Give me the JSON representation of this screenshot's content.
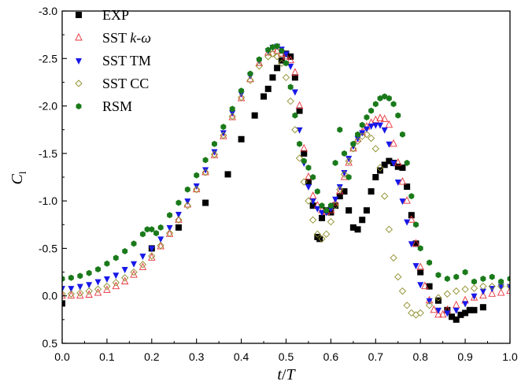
{
  "chart_data": {
    "type": "scatter",
    "xlabel_main": "t",
    "xlabel_sep": "/",
    "xlabel_sub": "T",
    "ylabel_main": "C",
    "ylabel_sub": "l",
    "xlim": [
      0.0,
      1.0
    ],
    "ylim": [
      0.5,
      -3.0
    ],
    "y_inverted": true,
    "x_ticks": [
      "0.0",
      "0.1",
      "0.2",
      "0.3",
      "0.4",
      "0.5",
      "0.6",
      "0.7",
      "0.8",
      "0.9",
      "1.0"
    ],
    "x_tick_values": [
      0,
      0.1,
      0.2,
      0.3,
      0.4,
      0.5,
      0.6,
      0.7,
      0.8,
      0.9,
      1.0
    ],
    "y_ticks": [
      "-3.0",
      "-2.5",
      "-2.0",
      "-1.5",
      "-1.0",
      "-0.5",
      "0.0",
      "0.5"
    ],
    "y_tick_values": [
      -3.0,
      -2.5,
      -2.0,
      -1.5,
      -1.0,
      -0.5,
      0.0,
      0.5
    ],
    "legend_position": "top-right-inside",
    "grid": false,
    "series": [
      {
        "name": "EXP",
        "legend_parts": [
          "EXP"
        ],
        "marker": "square",
        "color": "#000000",
        "x": [
          0.0,
          0.2,
          0.26,
          0.32,
          0.37,
          0.4,
          0.43,
          0.45,
          0.46,
          0.47,
          0.48,
          0.49,
          0.5,
          0.51,
          0.52,
          0.53,
          0.54,
          0.55,
          0.56,
          0.57,
          0.575,
          0.58,
          0.59,
          0.6,
          0.61,
          0.62,
          0.63,
          0.64,
          0.65,
          0.66,
          0.67,
          0.68,
          0.69,
          0.7,
          0.71,
          0.72,
          0.73,
          0.74,
          0.75,
          0.76,
          0.77,
          0.78,
          0.79,
          0.8,
          0.82,
          0.84,
          0.86,
          0.87,
          0.88,
          0.89,
          0.9,
          0.91,
          0.92,
          0.94
        ],
        "y": [
          0.08,
          -0.5,
          -0.72,
          -0.98,
          -1.28,
          -1.65,
          -1.9,
          -2.1,
          -2.18,
          -2.3,
          -2.4,
          -2.48,
          -2.55,
          -2.52,
          -2.3,
          -1.95,
          -1.5,
          -1.2,
          -0.95,
          -0.62,
          -0.6,
          -0.82,
          -0.9,
          -0.88,
          -0.95,
          -1.05,
          -1.1,
          -0.9,
          -0.72,
          -0.7,
          -0.8,
          -0.9,
          -1.1,
          -1.25,
          -1.32,
          -1.38,
          -1.42,
          -1.4,
          -1.36,
          -1.35,
          -1.15,
          -0.85,
          -0.55,
          -0.25,
          -0.1,
          0.05,
          0.15,
          0.22,
          0.25,
          0.2,
          0.18,
          0.15,
          0.15,
          0.12
        ]
      },
      {
        "name": "SST k-ω",
        "legend_parts": [
          "SST ",
          "k",
          "-",
          "ω"
        ],
        "marker": "triangle-up-open",
        "color": "#e8343c",
        "x": [
          0.0,
          0.02,
          0.04,
          0.06,
          0.08,
          0.1,
          0.12,
          0.14,
          0.16,
          0.18,
          0.2,
          0.22,
          0.24,
          0.26,
          0.28,
          0.3,
          0.32,
          0.34,
          0.36,
          0.38,
          0.4,
          0.42,
          0.44,
          0.46,
          0.47,
          0.48,
          0.49,
          0.5,
          0.51,
          0.52,
          0.53,
          0.54,
          0.55,
          0.56,
          0.57,
          0.58,
          0.59,
          0.6,
          0.61,
          0.62,
          0.63,
          0.64,
          0.65,
          0.66,
          0.67,
          0.68,
          0.69,
          0.7,
          0.71,
          0.72,
          0.73,
          0.74,
          0.75,
          0.76,
          0.77,
          0.78,
          0.79,
          0.8,
          0.81,
          0.82,
          0.83,
          0.84,
          0.85,
          0.86,
          0.88,
          0.9,
          0.92,
          0.94,
          0.96,
          0.98,
          1.0
        ],
        "y": [
          0.0,
          0.0,
          0.0,
          -0.01,
          -0.03,
          -0.06,
          -0.1,
          -0.15,
          -0.22,
          -0.3,
          -0.4,
          -0.52,
          -0.65,
          -0.8,
          -0.96,
          -1.12,
          -1.3,
          -1.48,
          -1.68,
          -1.88,
          -2.08,
          -2.28,
          -2.45,
          -2.56,
          -2.6,
          -2.58,
          -2.55,
          -2.52,
          -2.48,
          -2.35,
          -2.0,
          -1.55,
          -1.25,
          -1.05,
          -0.95,
          -0.9,
          -0.88,
          -0.9,
          -0.98,
          -1.1,
          -1.25,
          -1.4,
          -1.55,
          -1.65,
          -1.72,
          -1.78,
          -1.82,
          -1.85,
          -1.87,
          -1.86,
          -1.8,
          -1.6,
          -1.4,
          -1.2,
          -1.0,
          -0.8,
          -0.55,
          -0.3,
          -0.1,
          0.05,
          0.15,
          0.2,
          0.2,
          0.15,
          0.1,
          0.05,
          0.02,
          0.0,
          -0.02,
          -0.03,
          -0.05
        ]
      },
      {
        "name": "SST TM",
        "legend_parts": [
          "SST TM"
        ],
        "marker": "triangle-down",
        "color": "#1818e8",
        "x": [
          0.0,
          0.02,
          0.04,
          0.06,
          0.08,
          0.1,
          0.12,
          0.14,
          0.16,
          0.18,
          0.2,
          0.22,
          0.24,
          0.26,
          0.28,
          0.3,
          0.32,
          0.34,
          0.36,
          0.38,
          0.4,
          0.42,
          0.44,
          0.46,
          0.47,
          0.48,
          0.49,
          0.5,
          0.51,
          0.52,
          0.53,
          0.54,
          0.55,
          0.56,
          0.57,
          0.58,
          0.59,
          0.6,
          0.61,
          0.62,
          0.63,
          0.64,
          0.65,
          0.66,
          0.67,
          0.68,
          0.69,
          0.7,
          0.71,
          0.72,
          0.73,
          0.74,
          0.75,
          0.76,
          0.77,
          0.78,
          0.79,
          0.8,
          0.82,
          0.84,
          0.86,
          0.88,
          0.9,
          0.92,
          0.94,
          0.96,
          0.98,
          1.0
        ],
        "y": [
          -0.08,
          -0.08,
          -0.1,
          -0.12,
          -0.15,
          -0.18,
          -0.22,
          -0.28,
          -0.34,
          -0.42,
          -0.5,
          -0.6,
          -0.72,
          -0.86,
          -1.0,
          -1.16,
          -1.33,
          -1.52,
          -1.72,
          -1.93,
          -2.13,
          -2.32,
          -2.48,
          -2.58,
          -2.62,
          -2.63,
          -2.6,
          -2.55,
          -2.42,
          -2.15,
          -1.75,
          -1.4,
          -1.15,
          -1.0,
          -0.92,
          -0.88,
          -0.88,
          -0.92,
          -1.02,
          -1.15,
          -1.3,
          -1.45,
          -1.58,
          -1.66,
          -1.72,
          -1.76,
          -1.79,
          -1.8,
          -1.8,
          -1.75,
          -1.6,
          -1.4,
          -1.2,
          -1.0,
          -0.78,
          -0.55,
          -0.32,
          -0.12,
          0.05,
          0.15,
          0.18,
          0.15,
          0.08,
          0.0,
          -0.05,
          -0.08,
          -0.1,
          -0.1
        ]
      },
      {
        "name": "SST CC",
        "legend_parts": [
          "SST CC"
        ],
        "marker": "diamond-open",
        "color": "#8c8c28",
        "x": [
          0.0,
          0.02,
          0.04,
          0.06,
          0.08,
          0.1,
          0.12,
          0.14,
          0.16,
          0.18,
          0.2,
          0.22,
          0.24,
          0.26,
          0.28,
          0.3,
          0.32,
          0.34,
          0.36,
          0.38,
          0.4,
          0.42,
          0.44,
          0.46,
          0.47,
          0.48,
          0.49,
          0.5,
          0.51,
          0.52,
          0.53,
          0.54,
          0.55,
          0.56,
          0.57,
          0.58,
          0.59,
          0.6,
          0.61,
          0.62,
          0.63,
          0.64,
          0.65,
          0.66,
          0.67,
          0.68,
          0.69,
          0.7,
          0.71,
          0.72,
          0.73,
          0.74,
          0.75,
          0.76,
          0.77,
          0.78,
          0.79,
          0.8,
          0.82,
          0.84,
          0.86,
          0.88,
          0.9,
          0.92,
          0.94,
          0.96,
          0.98,
          1.0
        ],
        "y": [
          -0.02,
          -0.02,
          -0.03,
          -0.05,
          -0.07,
          -0.1,
          -0.14,
          -0.19,
          -0.25,
          -0.33,
          -0.42,
          -0.53,
          -0.66,
          -0.8,
          -0.95,
          -1.12,
          -1.3,
          -1.49,
          -1.69,
          -1.89,
          -2.09,
          -2.27,
          -2.42,
          -2.52,
          -2.55,
          -2.52,
          -2.45,
          -2.3,
          -2.05,
          -1.75,
          -1.45,
          -1.2,
          -1.0,
          -0.8,
          -0.65,
          -0.6,
          -0.65,
          -0.78,
          -0.95,
          -1.12,
          -1.28,
          -1.42,
          -1.55,
          -1.63,
          -1.68,
          -1.7,
          -1.66,
          -1.55,
          -1.35,
          -1.05,
          -0.7,
          -0.4,
          -0.2,
          -0.05,
          0.1,
          0.18,
          0.2,
          0.18,
          0.1,
          0.02,
          -0.02,
          -0.05,
          -0.07,
          -0.08,
          -0.1,
          -0.1,
          -0.1,
          -0.1
        ]
      },
      {
        "name": "RSM",
        "legend_parts": [
          "RSM"
        ],
        "marker": "hexagon",
        "color": "#1a7a1a",
        "x": [
          0.0,
          0.02,
          0.04,
          0.06,
          0.08,
          0.1,
          0.12,
          0.14,
          0.16,
          0.18,
          0.19,
          0.2,
          0.21,
          0.22,
          0.24,
          0.26,
          0.28,
          0.3,
          0.32,
          0.34,
          0.36,
          0.38,
          0.4,
          0.42,
          0.44,
          0.46,
          0.47,
          0.48,
          0.49,
          0.5,
          0.51,
          0.52,
          0.53,
          0.54,
          0.55,
          0.56,
          0.57,
          0.58,
          0.59,
          0.6,
          0.61,
          0.62,
          0.63,
          0.64,
          0.65,
          0.66,
          0.67,
          0.68,
          0.69,
          0.7,
          0.71,
          0.72,
          0.73,
          0.74,
          0.75,
          0.76,
          0.77,
          0.78,
          0.79,
          0.8,
          0.82,
          0.84,
          0.86,
          0.88,
          0.9,
          0.92,
          0.94,
          0.96,
          0.98,
          1.0
        ],
        "y": [
          -0.18,
          -0.19,
          -0.21,
          -0.24,
          -0.28,
          -0.34,
          -0.4,
          -0.47,
          -0.55,
          -0.65,
          -0.7,
          -0.7,
          -0.66,
          -0.72,
          -0.85,
          -0.98,
          -1.12,
          -1.27,
          -1.43,
          -1.6,
          -1.78,
          -1.97,
          -2.16,
          -2.34,
          -2.49,
          -2.59,
          -2.62,
          -2.63,
          -2.58,
          -2.45,
          -2.2,
          -1.9,
          -1.6,
          -1.42,
          -1.35,
          -1.25,
          -1.1,
          -0.95,
          -0.9,
          -0.95,
          -1.4,
          -1.75,
          -1.5,
          -1.25,
          -1.6,
          -1.7,
          -1.8,
          -1.88,
          -1.95,
          -2.02,
          -2.08,
          -2.1,
          -2.08,
          -2.02,
          -1.9,
          -1.7,
          -1.4,
          -1.05,
          -0.75,
          -0.5,
          -0.35,
          -0.22,
          -0.18,
          -0.2,
          -0.25,
          -0.15,
          -0.18,
          -0.2,
          -0.15,
          -0.18
        ]
      }
    ]
  }
}
